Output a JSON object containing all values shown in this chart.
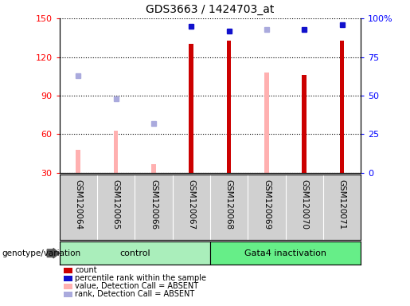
{
  "title": "GDS3663 / 1424703_at",
  "samples": [
    "GSM120064",
    "GSM120065",
    "GSM120066",
    "GSM120067",
    "GSM120068",
    "GSM120069",
    "GSM120070",
    "GSM120071"
  ],
  "count_values": [
    null,
    null,
    null,
    130,
    133,
    null,
    106,
    133
  ],
  "percentile_rank": [
    null,
    null,
    null,
    95,
    92,
    null,
    93,
    96
  ],
  "absent_value": [
    48,
    63,
    37,
    null,
    null,
    108,
    null,
    null
  ],
  "absent_rank": [
    63,
    48,
    32,
    null,
    null,
    93,
    null,
    null
  ],
  "ylim_left": [
    30,
    150
  ],
  "ylim_right": [
    0,
    100
  ],
  "left_ticks": [
    30,
    60,
    90,
    120,
    150
  ],
  "right_ticks": [
    0,
    25,
    50,
    75,
    100
  ],
  "right_tick_labels": [
    "0",
    "25",
    "50",
    "75",
    "100%"
  ],
  "colors": {
    "count_bar": "#cc0000",
    "percentile_marker": "#1111cc",
    "absent_value_bar": "#ffb0b0",
    "absent_rank_marker": "#aaaadd",
    "control_bg": "#aaeebb",
    "gata4_bg": "#66ee88",
    "sample_bg": "#d0d0d0",
    "plot_bg": "#ffffff"
  },
  "legend_items": [
    {
      "label": "count",
      "color": "#cc0000"
    },
    {
      "label": "percentile rank within the sample",
      "color": "#1111cc"
    },
    {
      "label": "value, Detection Call = ABSENT",
      "color": "#ffb0b0"
    },
    {
      "label": "rank, Detection Call = ABSENT",
      "color": "#aaaadd"
    }
  ],
  "genotext": "genotype/variation"
}
